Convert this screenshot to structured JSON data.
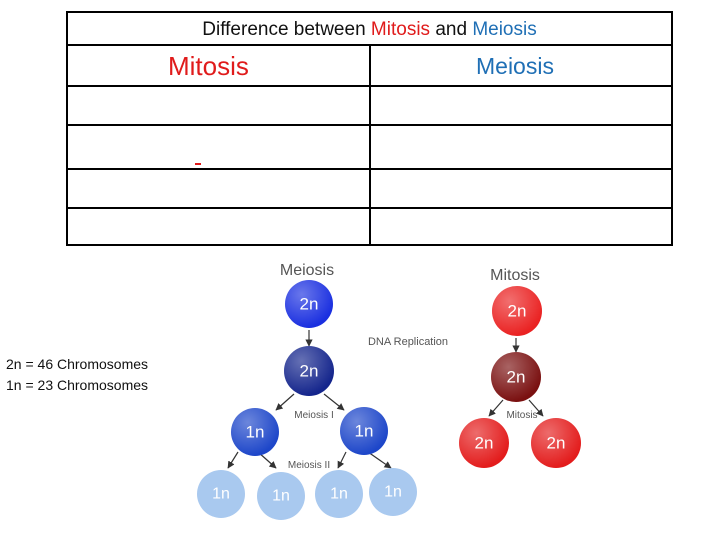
{
  "table": {
    "title_prefix": "Difference between ",
    "title_mitosis": "Mitosis",
    "title_and": " and ",
    "title_meiosis": "Meiosis",
    "col_mitosis": "Mitosis",
    "col_meiosis": "Meiosis",
    "rows": [
      {
        "mitosis": "",
        "meiosis": ""
      },
      {
        "mitosis": "",
        "meiosis": ""
      },
      {
        "mitosis": "",
        "meiosis": ""
      },
      {
        "mitosis": "",
        "meiosis": ""
      }
    ]
  },
  "note": {
    "line1": "2n = 46 Chromosomes",
    "line2": "1n = 23 Chromosomes"
  },
  "diagram": {
    "meiosis_title": "Meiosis",
    "mitosis_title": "Mitosis",
    "dna_replication": "DNA Replication",
    "meiosis_i": "Meiosis I",
    "meiosis_ii": "Meiosis II",
    "mitosis_step": "Mitosis",
    "diploid": "2n",
    "haploid": "1n",
    "colors": {
      "meiosis_start": "#1a2fe0",
      "meiosis_replicated": "#14258c",
      "meiosis_i_cells": "#1d46c9",
      "meiosis_ii_cells": "#a9c9ef",
      "mitosis_start": "#ea2222",
      "mitosis_replicated": "#7a1010",
      "mitosis_daughters": "#e31c1c"
    }
  }
}
